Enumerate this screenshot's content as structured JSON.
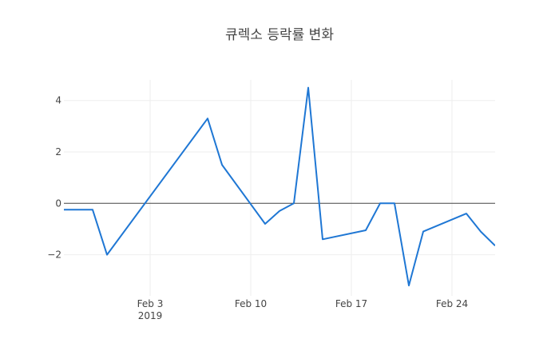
{
  "chart_data": {
    "type": "line",
    "title": "큐렉소 등락률 변화",
    "xlabel": "",
    "ylabel": "",
    "x_ticks": [
      {
        "date": "2019-02-03",
        "label": "Feb 3",
        "sublabel": "2019"
      },
      {
        "date": "2019-02-10",
        "label": "Feb 10",
        "sublabel": ""
      },
      {
        "date": "2019-02-17",
        "label": "Feb 17",
        "sublabel": ""
      },
      {
        "date": "2019-02-24",
        "label": "Feb 24",
        "sublabel": ""
      }
    ],
    "y_ticks": [
      {
        "value": 4,
        "label": "4"
      },
      {
        "value": 2,
        "label": "2"
      },
      {
        "value": 0,
        "label": "0"
      },
      {
        "value": -2,
        "label": "−2"
      }
    ],
    "xlim": [
      "2019-01-28",
      "2019-02-26"
    ],
    "ylim": [
      -3.6,
      4.8
    ],
    "grid": true,
    "zeroline": true,
    "series": [
      {
        "name": "",
        "color": "#1f77d4",
        "x": [
          "2019-01-28",
          "2019-01-29",
          "2019-01-30",
          "2019-01-31",
          "2019-02-07",
          "2019-02-08",
          "2019-02-11",
          "2019-02-12",
          "2019-02-13",
          "2019-02-14",
          "2019-02-15",
          "2019-02-18",
          "2019-02-19",
          "2019-02-20",
          "2019-02-21",
          "2019-02-22",
          "2019-02-25",
          "2019-02-26",
          "2019-02-27"
        ],
        "y": [
          -0.25,
          -0.25,
          -0.25,
          -2.0,
          3.3,
          1.5,
          -0.8,
          -0.3,
          0.0,
          4.5,
          -1.4,
          -1.05,
          0.0,
          0.0,
          -3.2,
          -1.1,
          -0.4,
          -1.1,
          -1.65
        ]
      }
    ]
  }
}
